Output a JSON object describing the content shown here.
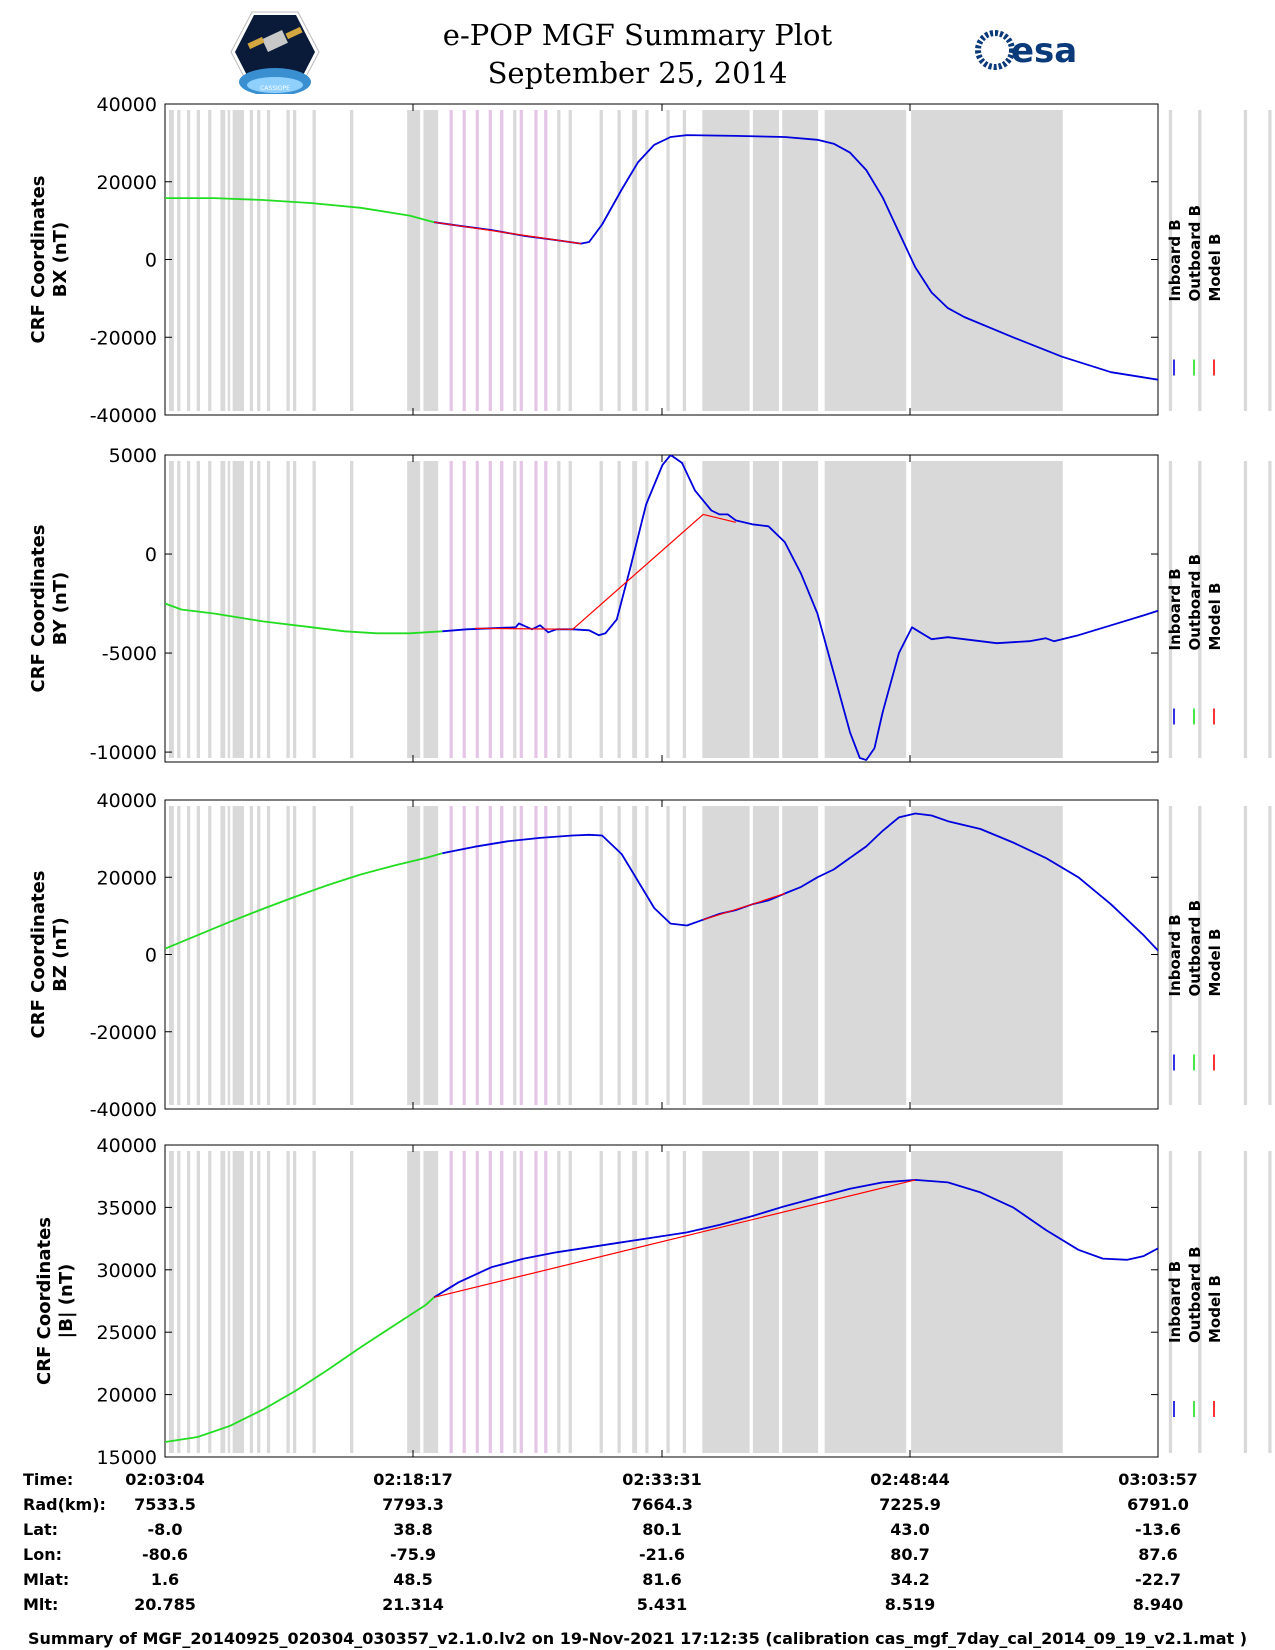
{
  "header": {
    "title_line1": "e-POP MGF Summary Plot",
    "title_line2": "September 25, 2014",
    "logo_left_text": "CASSIOPE",
    "logo_right_text": "esa"
  },
  "legend": {
    "inboard": "Inboard B",
    "outboard": "Outboard B",
    "model": "Model B"
  },
  "colors": {
    "inboard": "#0000dd",
    "outboard": "#22dd22",
    "model": "#ff0000",
    "gray_band": "#d9d9d9",
    "pink_band": "#e6c6e6"
  },
  "bands": {
    "gray": [
      [
        0.0,
        0.3
      ],
      [
        0.5,
        0.7
      ],
      [
        1.1,
        1.3
      ],
      [
        1.7,
        1.9
      ],
      [
        2.4,
        2.6
      ],
      [
        3.15,
        3.45
      ],
      [
        3.6,
        3.75
      ],
      [
        3.9,
        4.6
      ],
      [
        4.95,
        5.15
      ],
      [
        5.4,
        5.6
      ],
      [
        6.0,
        6.2
      ],
      [
        7.2,
        7.4
      ],
      [
        7.6,
        7.8
      ],
      [
        8.8,
        9.0
      ],
      [
        11.1,
        11.3
      ],
      [
        14.6,
        15.4
      ],
      [
        15.6,
        16.5
      ],
      [
        21.1,
        21.3
      ],
      [
        23.8,
        24.0
      ],
      [
        24.5,
        24.7
      ],
      [
        26.4,
        26.6
      ],
      [
        27.5,
        27.7
      ],
      [
        28.4,
        28.7
      ],
      [
        29.2,
        29.4
      ],
      [
        30.5,
        30.7
      ],
      [
        31.5,
        31.7
      ],
      [
        32.7,
        35.6
      ],
      [
        35.8,
        37.4
      ],
      [
        37.6,
        39.8
      ],
      [
        40.2,
        45.2
      ],
      [
        45.5,
        54.8
      ],
      [
        61.3,
        61.5
      ],
      [
        63.1,
        63.3
      ],
      [
        65.9,
        66.1
      ],
      [
        67.4,
        67.6
      ],
      [
        68.0,
        68.3
      ],
      [
        69.0,
        69.2
      ],
      [
        70.5,
        70.8
      ],
      [
        81.6,
        81.9
      ],
      [
        83.0,
        83.7
      ],
      [
        84.0,
        85.2
      ]
    ],
    "pink": [
      [
        17.2,
        17.4
      ],
      [
        18.0,
        18.2
      ],
      [
        18.8,
        19.0
      ],
      [
        19.6,
        19.8
      ],
      [
        20.3,
        20.5
      ],
      [
        21.5,
        21.7
      ],
      [
        22.4,
        22.6
      ],
      [
        23.0,
        23.2
      ]
    ]
  },
  "chart_data": [
    {
      "type": "line",
      "ylabel": "CRF Coordinates\nBX (nT)",
      "ylim": [
        -40000,
        40000
      ],
      "yticks": [
        -40000,
        -20000,
        0,
        20000,
        40000
      ],
      "xlim_minutes": [
        0,
        60.883
      ],
      "series": [
        {
          "name": "Outboard B",
          "points": [
            [
              0,
              15800
            ],
            [
              3,
              15800
            ],
            [
              6,
              15300
            ],
            [
              9,
              14500
            ],
            [
              12,
              13300
            ],
            [
              15,
              11300
            ],
            [
              16.5,
              9600
            ]
          ]
        },
        {
          "name": "Inboard B",
          "points": [
            [
              16.5,
              9600
            ],
            [
              18,
              8700
            ],
            [
              20,
              7600
            ],
            [
              22,
              6100
            ],
            [
              24,
              5000
            ],
            [
              25.5,
              4100
            ],
            [
              26,
              4500
            ],
            [
              26.8,
              9000
            ],
            [
              28,
              18000
            ],
            [
              29,
              25000
            ],
            [
              30,
              29500
            ],
            [
              31,
              31500
            ],
            [
              32,
              32000
            ],
            [
              35,
              31800
            ],
            [
              38,
              31500
            ],
            [
              40,
              30800
            ],
            [
              41,
              29800
            ],
            [
              42,
              27500
            ],
            [
              43,
              23000
            ],
            [
              44,
              16000
            ],
            [
              45,
              7000
            ],
            [
              46,
              -2000
            ],
            [
              47,
              -8500
            ],
            [
              48,
              -12500
            ],
            [
              49,
              -14800
            ],
            [
              52,
              -20000
            ],
            [
              55,
              -25000
            ],
            [
              58,
              -29000
            ],
            [
              61,
              -31000
            ],
            [
              62.5,
              -31300
            ],
            [
              64,
              -31000
            ],
            [
              66,
              -29500
            ],
            [
              68,
              -27000
            ]
          ]
        },
        {
          "name": "Model B",
          "points": [
            [
              16.5,
              9600
            ],
            [
              25.5,
              4100
            ]
          ]
        }
      ]
    },
    {
      "type": "line",
      "ylabel": "CRF Coordinates\nBY (nT)",
      "ylim": [
        -10500,
        5000
      ],
      "yticks": [
        -10000,
        -5000,
        0,
        5000
      ],
      "xlim_minutes": [
        0,
        60.883
      ],
      "series": [
        {
          "name": "Outboard B",
          "points": [
            [
              0,
              -2500
            ],
            [
              1,
              -2800
            ],
            [
              3,
              -3000
            ],
            [
              6,
              -3400
            ],
            [
              9,
              -3700
            ],
            [
              11,
              -3900
            ],
            [
              13,
              -4000
            ],
            [
              15,
              -4000
            ],
            [
              17,
              -3900
            ]
          ]
        },
        {
          "name": "Inboard B",
          "points": [
            [
              17,
              -3900
            ],
            [
              18.5,
              -3800
            ],
            [
              20,
              -3750
            ],
            [
              21.5,
              -3700
            ],
            [
              21.7,
              -3500
            ],
            [
              22.5,
              -3800
            ],
            [
              23,
              -3600
            ],
            [
              23.5,
              -3950
            ],
            [
              24,
              -3800
            ],
            [
              25,
              -3800
            ],
            [
              26,
              -3850
            ],
            [
              26.6,
              -4100
            ],
            [
              27,
              -4000
            ],
            [
              27.7,
              -3300
            ],
            [
              28.5,
              -800
            ],
            [
              29.5,
              2500
            ],
            [
              30.5,
              4500
            ],
            [
              31,
              5000
            ],
            [
              31.7,
              4600
            ],
            [
              32.5,
              3200
            ],
            [
              33.5,
              2200
            ],
            [
              34,
              2000
            ],
            [
              34.5,
              2000
            ],
            [
              35,
              1700
            ],
            [
              36,
              1500
            ],
            [
              37,
              1400
            ],
            [
              38,
              600
            ],
            [
              39,
              -1000
            ],
            [
              40,
              -3000
            ],
            [
              41,
              -6000
            ],
            [
              42,
              -9000
            ],
            [
              42.6,
              -10300
            ],
            [
              43,
              -10400
            ],
            [
              43.5,
              -9800
            ],
            [
              44,
              -8000
            ],
            [
              45,
              -5000
            ],
            [
              45.8,
              -3700
            ],
            [
              46.2,
              -3900
            ],
            [
              47,
              -4300
            ],
            [
              48,
              -4200
            ],
            [
              49,
              -4300
            ],
            [
              50,
              -4400
            ],
            [
              51,
              -4500
            ],
            [
              52,
              -4450
            ],
            [
              53,
              -4400
            ],
            [
              54,
              -4250
            ],
            [
              54.5,
              -4400
            ],
            [
              56,
              -4100
            ],
            [
              58,
              -3600
            ],
            [
              60,
              -3100
            ],
            [
              61.5,
              -2700
            ],
            [
              61.8,
              -2900
            ],
            [
              62.2,
              -2600
            ],
            [
              62.6,
              -2800
            ],
            [
              63,
              -2600
            ],
            [
              64,
              -2400
            ],
            [
              64.5,
              -2000
            ],
            [
              66,
              -1900
            ]
          ]
        },
        {
          "name": "Model B",
          "points": [
            [
              19,
              -3750
            ],
            [
              25,
              -3800
            ],
            [
              33,
              2000
            ],
            [
              35,
              1600
            ]
          ]
        }
      ]
    },
    {
      "type": "line",
      "ylabel": "CRF Coordinates\nBZ (nT)",
      "ylim": [
        -40000,
        40000
      ],
      "yticks": [
        -40000,
        -20000,
        0,
        20000,
        40000
      ],
      "xlim_minutes": [
        0,
        60.883
      ],
      "series": [
        {
          "name": "Outboard B",
          "points": [
            [
              0,
              1500
            ],
            [
              2,
              5000
            ],
            [
              4,
              8500
            ],
            [
              6,
              11800
            ],
            [
              8,
              15000
            ],
            [
              10,
              18000
            ],
            [
              12,
              20700
            ],
            [
              14,
              23000
            ],
            [
              16,
              25000
            ],
            [
              17,
              26200
            ]
          ]
        },
        {
          "name": "Inboard B",
          "points": [
            [
              17,
              26200
            ],
            [
              19,
              27900
            ],
            [
              21,
              29300
            ],
            [
              23,
              30200
            ],
            [
              25,
              30800
            ],
            [
              26,
              31000
            ],
            [
              26.8,
              30800
            ],
            [
              28,
              26000
            ],
            [
              29,
              19000
            ],
            [
              30,
              12000
            ],
            [
              31,
              8000
            ],
            [
              32,
              7500
            ],
            [
              33,
              9000
            ],
            [
              34,
              10500
            ],
            [
              35,
              11500
            ],
            [
              36,
              13000
            ],
            [
              37,
              14000
            ],
            [
              38,
              15800
            ],
            [
              39,
              17500
            ],
            [
              40,
              20000
            ],
            [
              41,
              22000
            ],
            [
              42,
              25000
            ],
            [
              43,
              28000
            ],
            [
              44,
              32000
            ],
            [
              45,
              35500
            ],
            [
              46,
              36500
            ],
            [
              47,
              36000
            ],
            [
              48,
              34500
            ],
            [
              50,
              32500
            ],
            [
              52,
              29000
            ],
            [
              54,
              25000
            ],
            [
              56,
              20000
            ],
            [
              58,
              13000
            ],
            [
              60,
              5000
            ],
            [
              62,
              -4000
            ],
            [
              64,
              -14000
            ],
            [
              66,
              -23000
            ],
            [
              68,
              -30000
            ]
          ]
        },
        {
          "name": "Model B",
          "points": [
            [
              33,
              9000
            ],
            [
              36,
              13000
            ],
            [
              38,
              15800
            ]
          ]
        }
      ]
    },
    {
      "type": "line",
      "ylabel": "CRF Coordinates\n|B| (nT)",
      "ylim": [
        15000,
        40000
      ],
      "yticks": [
        15000,
        20000,
        25000,
        30000,
        35000,
        40000
      ],
      "xlim_minutes": [
        0,
        60.883
      ],
      "series": [
        {
          "name": "Outboard B",
          "points": [
            [
              0,
              16200
            ],
            [
              2,
              16600
            ],
            [
              4,
              17500
            ],
            [
              6,
              18800
            ],
            [
              8,
              20300
            ],
            [
              10,
              22000
            ],
            [
              12,
              23800
            ],
            [
              14,
              25500
            ],
            [
              16,
              27200
            ],
            [
              16.5,
              27800
            ]
          ]
        },
        {
          "name": "Inboard B",
          "points": [
            [
              16.5,
              27800
            ],
            [
              18,
              29000
            ],
            [
              20,
              30200
            ],
            [
              22,
              30900
            ],
            [
              24,
              31400
            ],
            [
              26,
              31800
            ],
            [
              28,
              32200
            ],
            [
              30,
              32600
            ],
            [
              32,
              33000
            ],
            [
              34,
              33600
            ],
            [
              36,
              34300
            ],
            [
              38,
              35100
            ],
            [
              40,
              35800
            ],
            [
              42,
              36500
            ],
            [
              44,
              37000
            ],
            [
              46,
              37200
            ],
            [
              48,
              37000
            ],
            [
              50,
              36200
            ],
            [
              52,
              35000
            ],
            [
              54,
              33200
            ],
            [
              56,
              31600
            ],
            [
              57.5,
              30900
            ],
            [
              59,
              30800
            ],
            [
              60,
              31100
            ],
            [
              62,
              32500
            ],
            [
              64,
              34700
            ],
            [
              66,
              37000
            ],
            [
              68,
              39000
            ]
          ]
        },
        {
          "name": "Model B",
          "points": [
            [
              16.5,
              27800
            ],
            [
              46,
              37200
            ]
          ]
        }
      ]
    }
  ],
  "time_table": {
    "labels": [
      "Time:",
      "Rad(km):",
      "Lat:",
      "Lon:",
      "Mlat:",
      "Mlt:"
    ],
    "columns": [
      [
        "02:03:04",
        "7533.5",
        "-8.0",
        "-80.6",
        "1.6",
        "20.785"
      ],
      [
        "02:18:17",
        "7793.3",
        "38.8",
        "-75.9",
        "48.5",
        "21.314"
      ],
      [
        "02:33:31",
        "7664.3",
        "80.1",
        "-21.6",
        "81.6",
        "5.431"
      ],
      [
        "02:48:44",
        "7225.9",
        "43.0",
        "80.7",
        "34.2",
        "8.519"
      ],
      [
        "03:03:57",
        "6791.0",
        "-13.6",
        "87.6",
        "-22.7",
        "8.940"
      ]
    ]
  },
  "footer": "Summary of MGF_20140925_020304_030357_v2.1.0.lv2 on 19-Nov-2021 17:12:35 (calibration cas_mgf_7day_cal_2014_09_19_v2.1.mat )"
}
